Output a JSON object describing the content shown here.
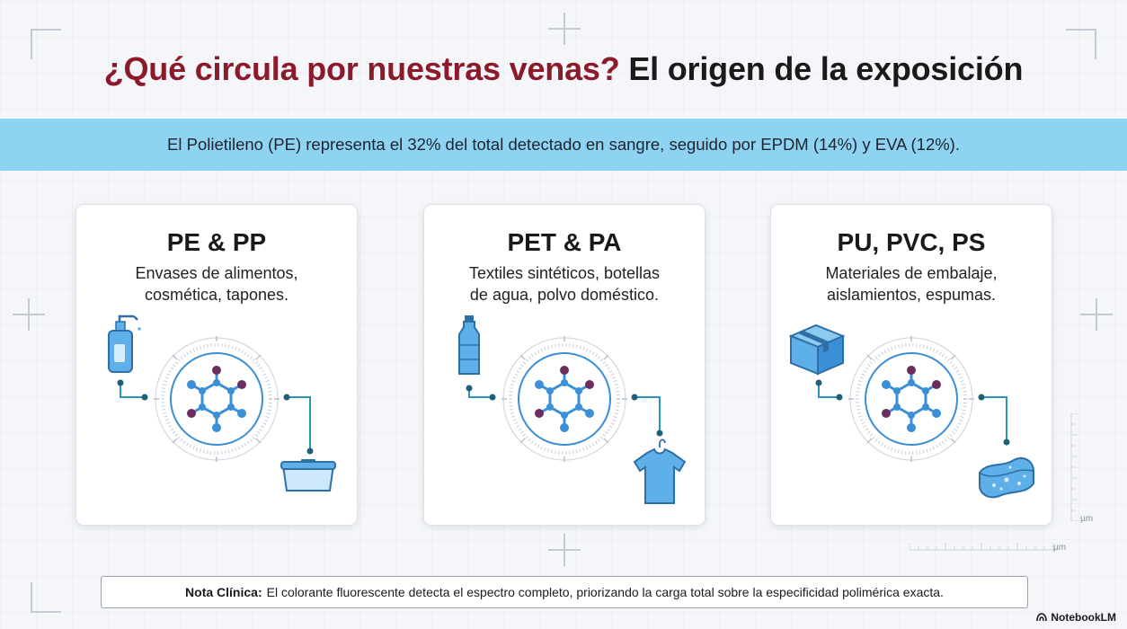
{
  "title": {
    "part1": "¿Qué circula por nuestras venas?",
    "part2": "El origen de la exposición"
  },
  "banner": "El Polietileno (PE) representa el 32% del total detectado en sangre, seguido por EPDM (14%) y EVA (12%).",
  "cards": [
    {
      "title": "PE & PP",
      "desc_line1": "Envases de alimentos,",
      "desc_line2": "cosmética, tapones.",
      "icons": [
        "pump-bottle-icon",
        "food-container-icon"
      ]
    },
    {
      "title": "PET & PA",
      "desc_line1": "Textiles sintéticos, botellas",
      "desc_line2": "de agua, polvo doméstico.",
      "icons": [
        "water-bottle-icon",
        "t-shirt-icon"
      ]
    },
    {
      "title": "PU, PVC, PS",
      "desc_line1": "Materiales de embalaje,",
      "desc_line2": "aislamientos, espumas.",
      "icons": [
        "cardboard-box-icon",
        "foam-sponge-icon"
      ]
    }
  ],
  "note": {
    "label": "Nota Clínica:",
    "text": "El colorante fluorescente detecta el espectro completo, priorizando la carga total sobre la especificidad polimérica exacta."
  },
  "scale_unit": "µm",
  "brand": "NotebookLM",
  "colors": {
    "title_red": "#8b1a2b",
    "banner_blue": "#8fd3f2",
    "icon_blue": "#3a8fd6",
    "molecule_purple": "#6b2e5f",
    "connector_teal": "#2b95b8"
  }
}
